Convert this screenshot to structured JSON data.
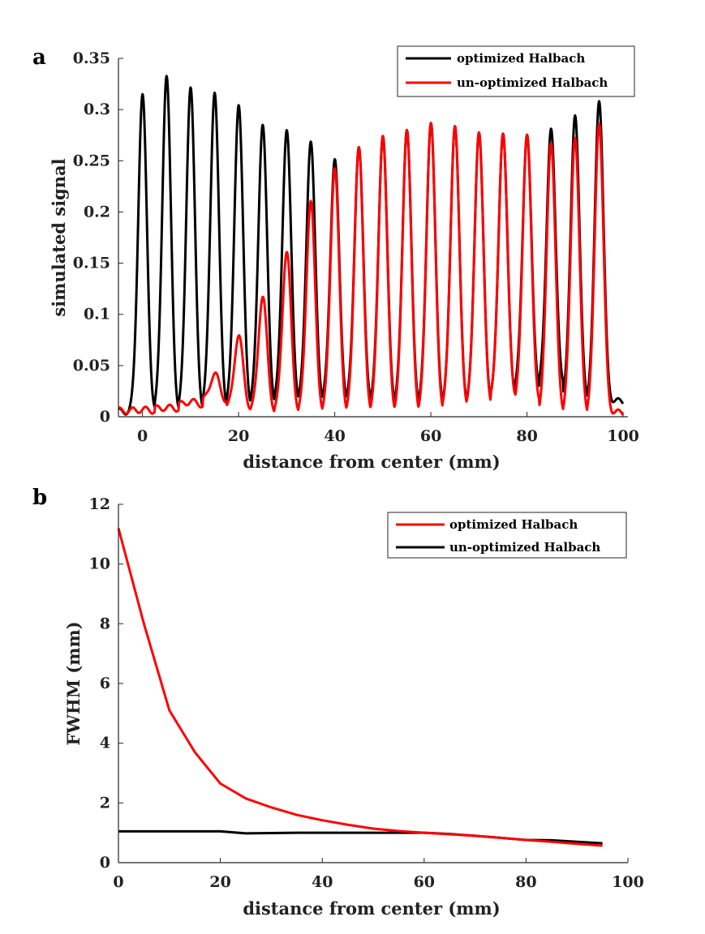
{
  "chart_data": [
    {
      "panel_label": "a",
      "type": "line",
      "title": "",
      "xlabel": "distance from center (mm)",
      "ylabel": "simulated signal",
      "xlim": [
        -5,
        101
      ],
      "ylim": [
        0,
        0.35
      ],
      "xticks": [
        0,
        20,
        40,
        60,
        80,
        100
      ],
      "xtick_labels": [
        "0",
        "20",
        "40",
        "60",
        "80",
        "100"
      ],
      "yticks": [
        0,
        0.05,
        0.1,
        0.15,
        0.2,
        0.25,
        0.3,
        0.35
      ],
      "ytick_labels": [
        "0",
        "0.05",
        "0.1",
        "0.15",
        "0.2",
        "0.25",
        "0.3",
        "0.35"
      ],
      "legend_position": "top-right",
      "peak_centers": [
        0,
        5,
        10,
        15,
        20,
        25,
        30,
        35,
        40,
        45,
        50,
        55,
        60,
        65,
        70,
        75,
        80,
        85,
        90,
        95
      ],
      "series": [
        {
          "name": "optimized Halbach",
          "color": "#000000",
          "peak_heights": [
            0.315,
            0.333,
            0.322,
            0.317,
            0.305,
            0.286,
            0.281,
            0.27,
            0.253,
            0.265,
            0.276,
            0.282,
            0.289,
            0.286,
            0.28,
            0.279,
            0.278,
            0.284,
            0.297,
            0.311
          ],
          "baseline": [
            0.005,
            0.004,
            0.005,
            0.008,
            0.01,
            0.012,
            0.015,
            0.015,
            0.016,
            0.015,
            0.013,
            0.012,
            0.012,
            0.012,
            0.014,
            0.02,
            0.028,
            0.033,
            0.018,
            0.015
          ]
        },
        {
          "name": "un-optimized Halbach",
          "color": "#ff0000",
          "peak_heights": [
            0.007,
            0.009,
            0.015,
            0.043,
            0.08,
            0.118,
            0.162,
            0.212,
            0.244,
            0.265,
            0.276,
            0.282,
            0.289,
            0.286,
            0.28,
            0.279,
            0.278,
            0.27,
            0.275,
            0.289
          ],
          "baseline": [
            0.006,
            0.008,
            0.012,
            0.016,
            0.008,
            0.005,
            0.005,
            0.005,
            0.005,
            0.005,
            0.005,
            0.005,
            0.006,
            0.01,
            0.012,
            0.02,
            0.015,
            0.005,
            0.004,
            0.004
          ]
        }
      ]
    },
    {
      "panel_label": "b",
      "type": "line",
      "title": "",
      "xlabel": "distance from center (mm)",
      "ylabel": "FWHM (mm)",
      "xlim": [
        0,
        100
      ],
      "ylim": [
        0,
        12
      ],
      "xticks": [
        0,
        20,
        40,
        60,
        80,
        100
      ],
      "xtick_labels": [
        "0",
        "20",
        "40",
        "60",
        "80",
        "100"
      ],
      "yticks": [
        0,
        2,
        4,
        6,
        8,
        10,
        12
      ],
      "ytick_labels": [
        "0",
        "2",
        "4",
        "6",
        "8",
        "10",
        "12"
      ],
      "legend_position": "top-right",
      "x": [
        0,
        5,
        10,
        15,
        20,
        25,
        30,
        35,
        40,
        45,
        50,
        55,
        60,
        65,
        70,
        75,
        80,
        85,
        90,
        95
      ],
      "series": [
        {
          "name": "optimized Halbach",
          "color": "#ff0000",
          "values": [
            11.2,
            8.0,
            5.1,
            3.7,
            2.65,
            2.15,
            1.85,
            1.6,
            1.42,
            1.27,
            1.14,
            1.06,
            1.0,
            0.95,
            0.9,
            0.83,
            0.76,
            0.7,
            0.63,
            0.57
          ]
        },
        {
          "name": "un-optimized Halbach",
          "color": "#000000",
          "values": [
            1.05,
            1.05,
            1.05,
            1.05,
            1.05,
            0.98,
            0.99,
            1.0,
            1.0,
            1.0,
            1.0,
            1.0,
            1.0,
            0.96,
            0.9,
            0.83,
            0.76,
            0.75,
            0.7,
            0.65
          ]
        }
      ]
    }
  ]
}
